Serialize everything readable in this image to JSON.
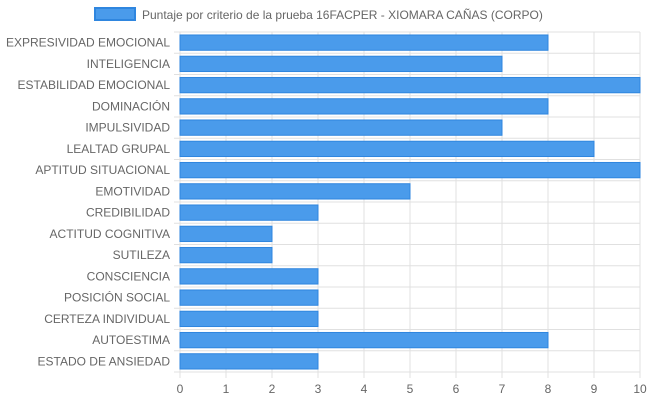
{
  "chart_data": {
    "type": "bar",
    "orientation": "horizontal",
    "categories": [
      "EXPRESIVIDAD EMOCIONAL",
      "INTELIGENCIA",
      "ESTABILIDAD EMOCIONAL",
      "DOMINACIÓN",
      "IMPULSIVIDAD",
      "LEALTAD GRUPAL",
      "APTITUD SITUACIONAL",
      "EMOTIVIDAD",
      "CREDIBILIDAD",
      "ACTITUD COGNITIVA",
      "SUTILEZA",
      "CONSCIENCIA",
      "POSICIÓN SOCIAL",
      "CERTEZA INDIVIDUAL",
      "AUTOESTIMA",
      "ESTADO DE ANSIEDAD"
    ],
    "series": [
      {
        "name": "Puntaje por criterio de la prueba 16FACPER - XIOMARA CAÑAS (CORPO)",
        "values": [
          8,
          7,
          10,
          8,
          7,
          9,
          10,
          5,
          3,
          2,
          2,
          3,
          3,
          3,
          8,
          3
        ]
      }
    ],
    "xlim": [
      0,
      10
    ],
    "xticks": [
      "0",
      "1",
      "2",
      "3",
      "4",
      "5",
      "6",
      "7",
      "8",
      "9",
      "10"
    ],
    "grid": true,
    "legend_position": "top-center"
  },
  "colors": {
    "bar_fill": "#4a9beb",
    "bar_stroke": "#2f86df",
    "grid": "#e0e0e0",
    "text": "#666666"
  }
}
